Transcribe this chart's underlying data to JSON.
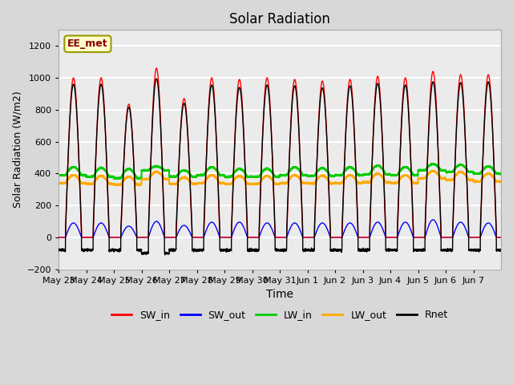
{
  "title": "Solar Radiation",
  "xlabel": "Time",
  "ylabel": "Solar Radiation (W/m2)",
  "ylim": [
    -200,
    1300
  ],
  "yticks": [
    -200,
    0,
    200,
    400,
    600,
    800,
    1000,
    1200
  ],
  "x_labels": [
    "May 23",
    "May 24",
    "May 25",
    "May 26",
    "May 27",
    "May 28",
    "May 29",
    "May 30",
    "May 31",
    "Jun 1",
    "Jun 2",
    "Jun 3",
    "Jun 4",
    "Jun 5",
    "Jun 6",
    "Jun 7"
  ],
  "annotation": "EE_met",
  "annotation_bg": "#ffffcc",
  "annotation_border": "#999900",
  "sw_in_color": "#ff0000",
  "sw_out_color": "#0000ff",
  "lw_in_color": "#00cc00",
  "lw_out_color": "#ffaa00",
  "rnet_color": "#000000",
  "fig_bg_color": "#d8d8d8",
  "plot_bg_color": "#ebebeb",
  "n_days": 16,
  "sw_in_peak": [
    1000,
    1000,
    835,
    1060,
    870,
    1000,
    990,
    1000,
    990,
    980,
    990,
    1010,
    1000,
    1040,
    1020,
    1020
  ],
  "sw_out_peak": [
    90,
    90,
    70,
    100,
    75,
    95,
    95,
    90,
    90,
    90,
    90,
    95,
    95,
    110,
    95,
    90
  ],
  "lw_in_base": [
    390,
    380,
    370,
    420,
    380,
    390,
    380,
    380,
    390,
    385,
    390,
    395,
    390,
    420,
    410,
    400
  ],
  "lw_in_peak_add": [
    50,
    55,
    60,
    25,
    40,
    50,
    50,
    50,
    50,
    50,
    50,
    55,
    50,
    40,
    45,
    45
  ],
  "lw_out_base": [
    340,
    335,
    330,
    365,
    335,
    340,
    335,
    335,
    340,
    338,
    340,
    345,
    340,
    370,
    360,
    350
  ],
  "lw_out_peak_add": [
    50,
    50,
    50,
    45,
    40,
    50,
    50,
    50,
    50,
    50,
    50,
    55,
    50,
    45,
    50,
    50
  ],
  "rnet_night": [
    -80,
    -80,
    -80,
    -100,
    -80,
    -80,
    -80,
    -80,
    -80,
    -80,
    -80,
    -80,
    -80,
    -80,
    -80,
    -80
  ]
}
